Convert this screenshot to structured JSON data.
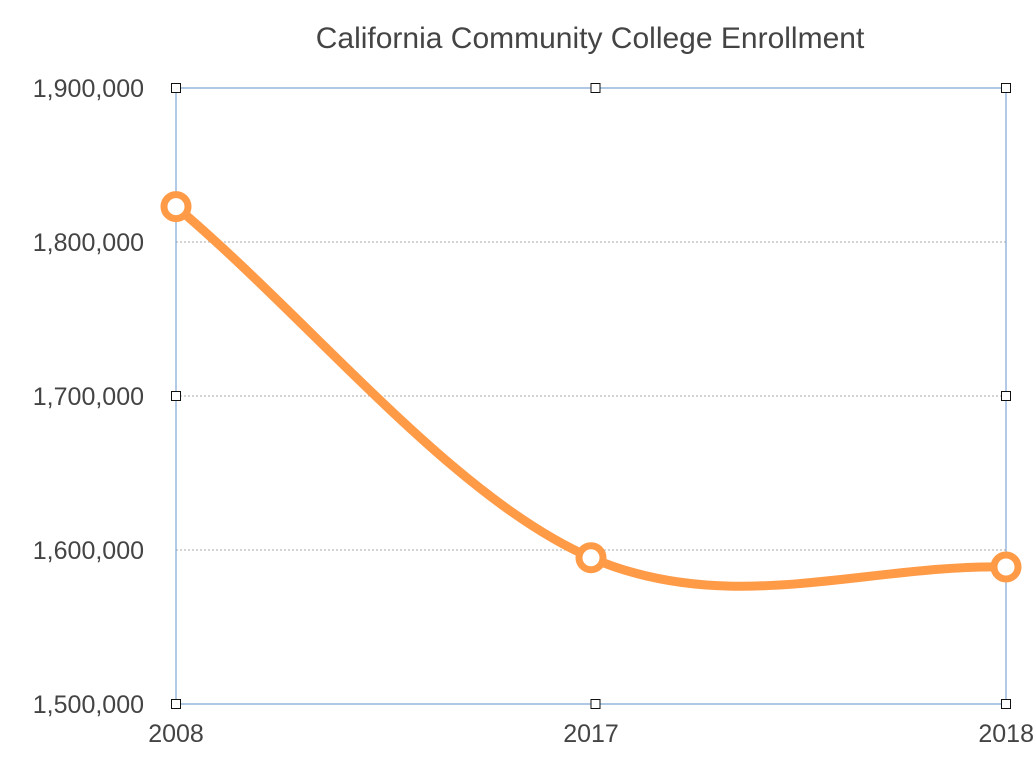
{
  "chart_data": {
    "type": "line",
    "title": "California Community College Enrollment",
    "xlabel": "",
    "ylabel": "",
    "categories": [
      "2008",
      "2017",
      "2018"
    ],
    "series": [
      {
        "values": [
          1823000,
          1595000,
          1589000
        ]
      }
    ],
    "ylim": [
      1500000,
      1900000
    ],
    "yticks": [
      1500000,
      1600000,
      1700000,
      1800000,
      1900000
    ],
    "ytick_labels": [
      "1,500,000",
      "1,600,000",
      "1,700,000",
      "1,800,000",
      "1,900,000"
    ],
    "grid": true,
    "smooth": true,
    "line_color": "#FF9A47",
    "frame_color": "#7FA7D6",
    "grid_color": "#AAAAAA"
  }
}
